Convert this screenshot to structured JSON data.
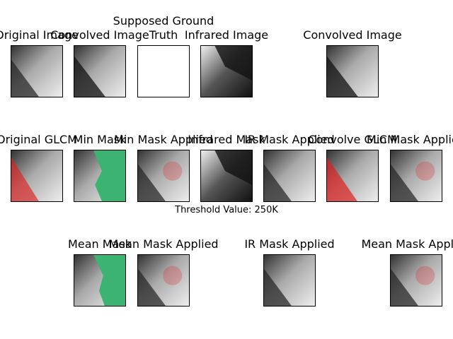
{
  "row1": {
    "original_image": "Original Image",
    "convolved_image": "Convolved Image",
    "supposed_ground_truth_line1": "Supposed Ground",
    "supposed_ground_truth_line2": "Truth",
    "infrared_image": "Infrared Image",
    "convolved_image_2": "Convolved Image"
  },
  "row2": {
    "original_glcm": "Original GLCM",
    "min_mask": "Min Mask",
    "min_mask_applied": "Min Mask Applied",
    "infrared_mask": "Infrared Mask",
    "ir_mask_applied": "IR Mask Applied",
    "convolve_glcm": "Convolve GLCM",
    "min_mask_applied_2": "Min Mask Applied"
  },
  "threshold_caption": "Threshold Value: 250K",
  "row3": {
    "mean_mask": "Mean Mask",
    "mean_mask_applied": "Mean Mask Applied",
    "ir_mask_applied": "IR Mask Applied",
    "mean_mask_applied_2": "Mean Mask Applied"
  },
  "colors": {
    "mask_green": "#3cb371",
    "glcm_red": "#e02020"
  }
}
